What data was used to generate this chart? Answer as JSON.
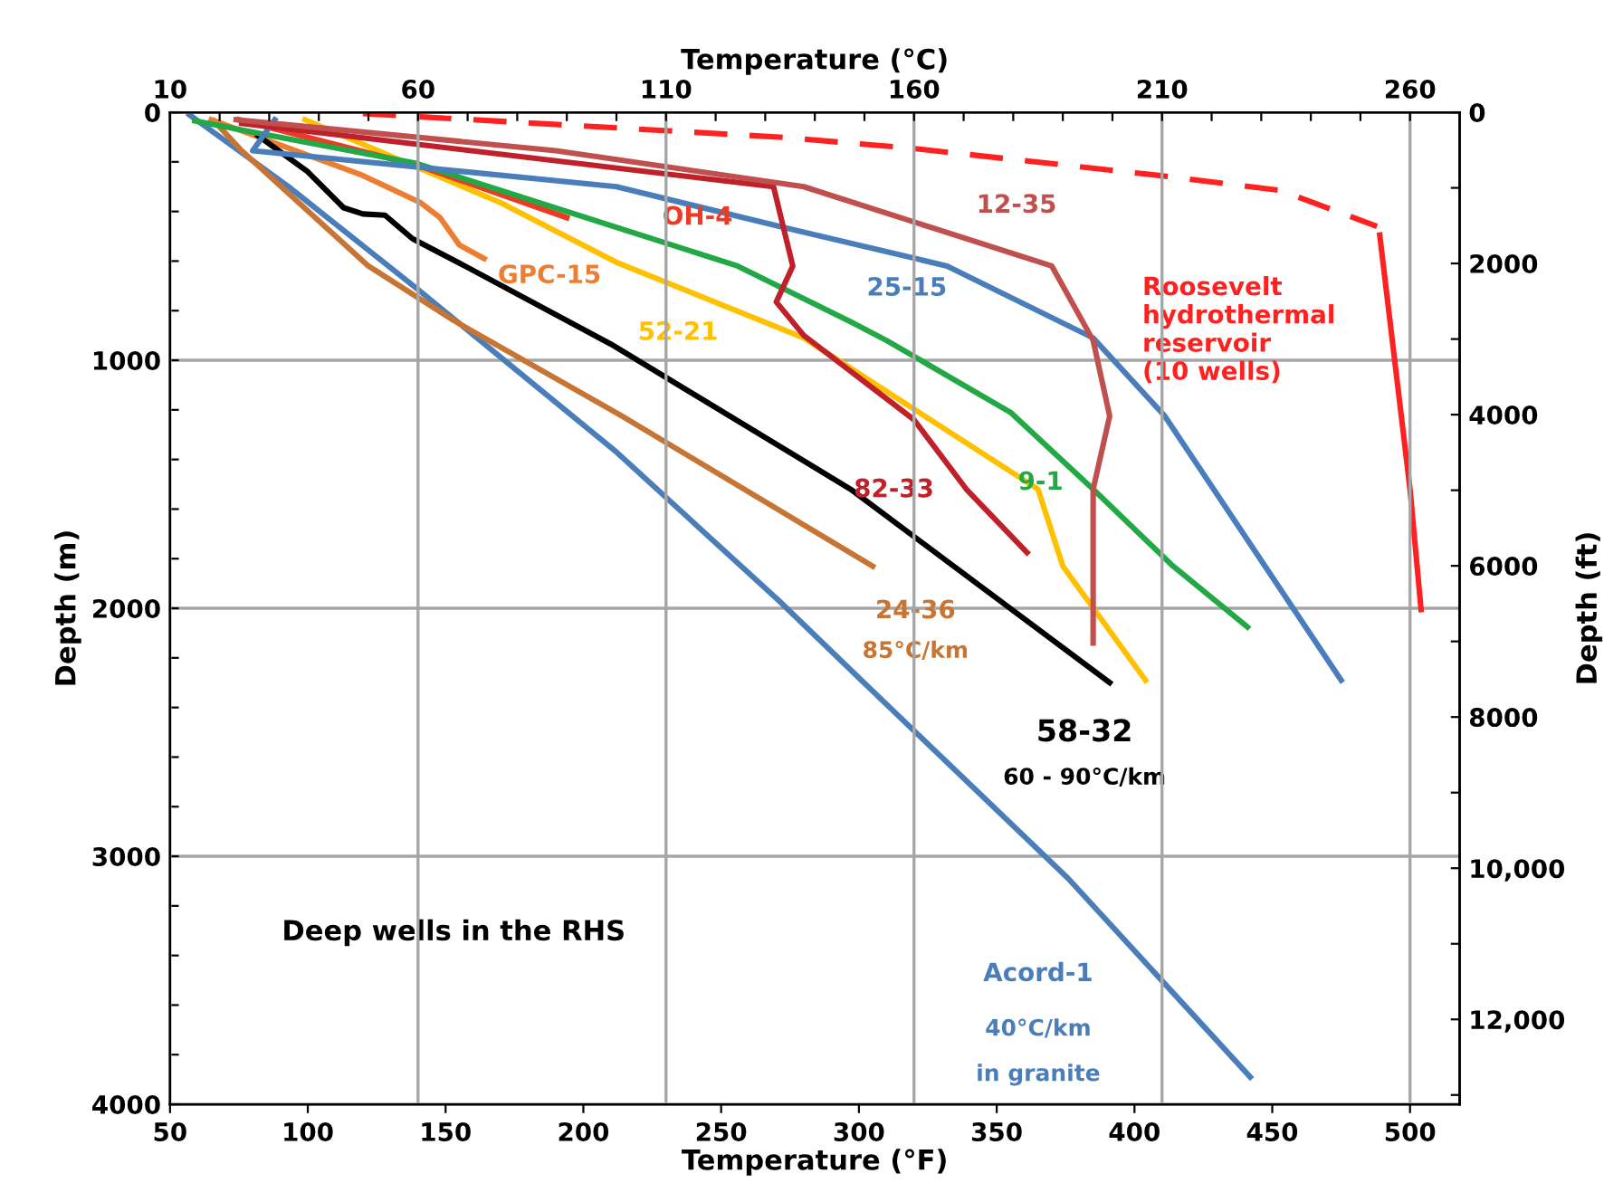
{
  "chart_data": {
    "type": "line",
    "xlabel": "Temperature (°F)",
    "x2label": "Temperature (°C)",
    "ylabel": "Depth (m)",
    "y2label": "Depth (ft)",
    "xlim": [
      50,
      518
    ],
    "xticks": [
      50,
      100,
      150,
      200,
      250,
      300,
      350,
      400,
      450,
      500
    ],
    "x2lim": [
      10,
      270
    ],
    "x2ticks": [
      10,
      {
        "value": 20,
        "label": null
      },
      {
        "value": 30,
        "label": null
      },
      {
        "value": 40,
        "label": null
      },
      {
        "value": 50,
        "label": null
      },
      60,
      {
        "value": 70,
        "label": null
      },
      {
        "value": 80,
        "label": null
      },
      {
        "value": 90,
        "label": null
      },
      {
        "value": 100,
        "label": null
      },
      110,
      {
        "value": 120,
        "label": null
      },
      {
        "value": 130,
        "label": null
      },
      {
        "value": 140,
        "label": null
      },
      {
        "value": 150,
        "label": null
      },
      160,
      {
        "value": 170,
        "label": null
      },
      {
        "value": 180,
        "label": null
      },
      {
        "value": 190,
        "label": null
      },
      {
        "value": 200,
        "label": null
      },
      210,
      {
        "value": 220,
        "label": null
      },
      {
        "value": 230,
        "label": null
      },
      {
        "value": 240,
        "label": null
      },
      {
        "value": 250,
        "label": null
      },
      260
    ],
    "ylim": [
      4000,
      0
    ],
    "yticks": [
      0,
      {
        "value": 200,
        "label": null
      },
      {
        "value": 400,
        "label": null
      },
      {
        "value": 600,
        "label": null
      },
      {
        "value": 800,
        "label": null
      },
      1000,
      {
        "value": 1200,
        "label": null
      },
      {
        "value": 1400,
        "label": null
      },
      {
        "value": 1600,
        "label": null
      },
      {
        "value": 1800,
        "label": null
      },
      2000,
      {
        "value": 2200,
        "label": null
      },
      {
        "value": 2400,
        "label": null
      },
      {
        "value": 2600,
        "label": null
      },
      {
        "value": 2800,
        "label": null
      },
      3000,
      {
        "value": 3200,
        "label": null
      },
      {
        "value": 3400,
        "label": null
      },
      {
        "value": 3600,
        "label": null
      },
      {
        "value": 3800,
        "label": null
      },
      4000
    ],
    "y2lim": [
      13123,
      0
    ],
    "y2ticks": [
      0,
      {
        "value": 1000,
        "label": null
      },
      2000,
      {
        "value": 3000,
        "label": null
      },
      4000,
      {
        "value": 5000,
        "label": null
      },
      6000,
      {
        "value": 7000,
        "label": null
      },
      8000,
      {
        "value": 9000,
        "label": null
      },
      {
        "value": 10000,
        "label": "10,000"
      },
      {
        "value": 11000,
        "label": null
      },
      {
        "value": 12000,
        "label": "12,000"
      },
      {
        "value": 13000,
        "label": null
      }
    ],
    "grid": true,
    "series": [
      {
        "name": "Acord-1",
        "color": "#4a7ebb",
        "x": [
          57,
          93,
          140,
          212,
          271,
          299,
          376,
          442
        ],
        "values": [
          10,
          300,
          715,
          1370,
          1970,
          2270,
          3090,
          3890
        ]
      },
      {
        "name": "24-36",
        "color": "#c87533",
        "x": [
          66,
          76,
          122,
          153,
          214,
          305
        ],
        "values": [
          35,
          155,
          620,
          840,
          1225,
          1830
        ]
      },
      {
        "name": "GPC-15",
        "color": "#ed7d31",
        "x": [
          65,
          120,
          141,
          148,
          155,
          164
        ],
        "values": [
          30,
          255,
          365,
          425,
          535,
          590
        ]
      },
      {
        "name": "58-32",
        "color": "#000000",
        "x": [
          82,
          100,
          113,
          120,
          128,
          138,
          157,
          210,
          297,
          391
        ],
        "values": [
          95,
          240,
          385,
          410,
          415,
          510,
          620,
          935,
          1520,
          2300
        ]
      },
      {
        "name": "52-21",
        "color": "#ffc000",
        "x": [
          99,
          170,
          212,
          280,
          365,
          374,
          404
        ],
        "values": [
          30,
          365,
          605,
          910,
          1520,
          1830,
          2290
        ]
      },
      {
        "name": "OH-4",
        "color": "#ec3a24",
        "x": [
          75,
          140,
          194
        ],
        "values": [
          30,
          215,
          425
        ]
      },
      {
        "name": "9-1",
        "color": "#22a845",
        "x": [
          59,
          139,
          256,
          297,
          310,
          355,
          385,
          414,
          441
        ],
        "values": [
          35,
          205,
          620,
          845,
          920,
          1210,
          1520,
          1830,
          2075
        ]
      },
      {
        "name": "25-15",
        "color": "#4a7ebb",
        "x": [
          88,
          80,
          212,
          271,
          332,
          385,
          411,
          475
        ],
        "values": [
          30,
          155,
          300,
          460,
          620,
          910,
          1225,
          2290
        ]
      },
      {
        "name": "82-33",
        "color": "#c0202a",
        "x": [
          76,
          269,
          276,
          270,
          280,
          320,
          339,
          361
        ],
        "values": [
          45,
          300,
          620,
          765,
          900,
          1240,
          1520,
          1775
        ]
      },
      {
        "name": "12-35",
        "color": "#c0504d",
        "x": [
          74,
          190,
          280,
          370,
          385,
          391,
          385,
          385
        ],
        "values": [
          30,
          155,
          300,
          620,
          920,
          1225,
          1520,
          2140
        ]
      },
      {
        "color": "#ff2020",
        "line_style": "dashed",
        "x": [
          120,
          271,
          319,
          409,
          453,
          488
        ],
        "values": [
          5,
          100,
          145,
          255,
          315,
          460
        ]
      },
      {
        "name": "Roosevelt\nhydrothermal\nreservoir\n(10 wells)",
        "color": "#ff2020",
        "x": [
          489,
          500,
          504
        ],
        "values": [
          495,
          1520,
          2005
        ]
      }
    ],
    "annotations": [
      "85°C/km",
      "60 - 90°C/km",
      "40°C/km",
      "in granite",
      "Deep wells in the RHS"
    ]
  }
}
